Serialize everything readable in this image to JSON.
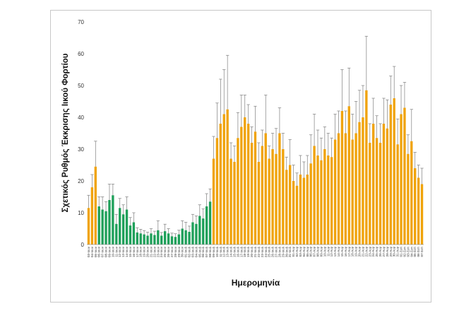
{
  "chart_data": {
    "type": "bar",
    "title": "",
    "xlabel": "Ημερομηνία",
    "ylabel": "Σχετικός Ρυθμός Έκκρισης Ιικού Φορτίου",
    "ylim": [
      0,
      70
    ],
    "yticks": [
      0,
      10,
      20,
      30,
      40,
      50,
      60,
      70
    ],
    "grid": false,
    "colors": {
      "orange": "#F0A30A",
      "green": "#1FA05A",
      "error": "#7f7f7f"
    },
    "categories": [
      "03-Ιουν",
      "04-Ιουν",
      "05-Ιουν",
      "06-Ιουν",
      "07-Ιουν",
      "08-Ιουν",
      "09-Ιουν",
      "10-Ιουν",
      "11-Ιουν",
      "12-Ιουν",
      "13-Ιουν",
      "14-Ιουν",
      "15-Ιουν",
      "16-Ιουν",
      "17-Ιουν",
      "18-Ιουν",
      "19-Ιουν",
      "20-Ιουν",
      "21-Ιουν",
      "22-Ιουν",
      "23-Ιουν",
      "24-Ιουν",
      "25-Ιουν",
      "26-Ιουν",
      "27-Ιουν",
      "28-Ιουν",
      "29-Ιουν",
      "30-Ιουν",
      "01-Ιουλ",
      "02-Ιουλ",
      "03-Ιουλ",
      "04-Ιουλ",
      "05-Ιουλ",
      "06-Ιουλ",
      "07-Ιουλ",
      "08-Ιουλ",
      "09-Ιουλ",
      "10-Ιουλ",
      "11-Ιουλ",
      "12-Ιουλ",
      "13-Ιουλ",
      "14-Ιουλ",
      "15-Ιουλ",
      "16-Ιουλ",
      "17-Ιουλ",
      "18-Ιουλ",
      "19-Ιουλ",
      "20-Ιουλ",
      "21-Ιουλ",
      "22-Ιουλ",
      "23-Ιουλ",
      "24-Ιουλ",
      "25-Ιουλ",
      "26-Ιουλ",
      "27-Ιουλ",
      "28-Ιουλ",
      "29-Ιουλ",
      "30-Ιουλ",
      "31-Ιουλ",
      "01-Αυγ",
      "02-Αυγ",
      "03-Αυγ",
      "04-Αυγ",
      "05-Αυγ",
      "06-Αυγ",
      "07-Αυγ",
      "08-Αυγ",
      "09-Αυγ",
      "10-Αυγ",
      "11-Αυγ",
      "12-Αυγ",
      "13-Αυγ",
      "14-Αυγ",
      "15-Αυγ",
      "16-Αυγ",
      "17-Αυγ",
      "18-Αυγ",
      "19-Αυγ",
      "20-Αυγ",
      "21-Αυγ",
      "22-Αυγ",
      "23-Αυγ",
      "24-Αυγ",
      "25-Αυγ",
      "26-Αυγ",
      "27-Αυγ",
      "28-Αυγ",
      "29-Αυγ",
      "30-Αυγ",
      "31-Αυγ",
      "01-Σεπ",
      "02-Σεπ",
      "03-Σεπ",
      "04-Σεπ",
      "05-Σεπ",
      "06-Σεπ",
      "07-Σεπ"
    ],
    "values": [
      11.5,
      18,
      24.5,
      12,
      11,
      10.5,
      14,
      15.5,
      6.5,
      11.5,
      9.5,
      11,
      6,
      7,
      3.8,
      3.5,
      3.2,
      2.8,
      3.5,
      3,
      4.5,
      2.8,
      4.2,
      3.5,
      2.6,
      2.4,
      3.2,
      5,
      4.5,
      4,
      7,
      6.5,
      9,
      8.2,
      12,
      13.5,
      27,
      33.5,
      38,
      41,
      42.5,
      27,
      26,
      33.5,
      37,
      40,
      38,
      32,
      35.5,
      26,
      31,
      35,
      27,
      30,
      28.5,
      35,
      30,
      23.5,
      25,
      20,
      18.5,
      22,
      21,
      22,
      25.5,
      31,
      28,
      26.5,
      30,
      28,
      27.5,
      33,
      35,
      42,
      35,
      43.5,
      33,
      35,
      38.5,
      40,
      48.5,
      32,
      38,
      33.5,
      32,
      38,
      36.5,
      44,
      46,
      31.5,
      41,
      43,
      28.5,
      32.5,
      24,
      21,
      19
    ],
    "errors": [
      4,
      4,
      8,
      3,
      4,
      3,
      5,
      3.5,
      3,
      3,
      3,
      4,
      2.5,
      3,
      1.5,
      1.3,
      1.2,
      1.1,
      1.5,
      1.2,
      3,
      1,
      2.2,
      1.5,
      1,
      1,
      1.3,
      2.5,
      2.5,
      1.8,
      2.5,
      2.5,
      3.5,
      3,
      4,
      4,
      7,
      11,
      14,
      14,
      17,
      5,
      5,
      8,
      10,
      7,
      6,
      5,
      8,
      6,
      5,
      12,
      4,
      5,
      8,
      8,
      5,
      4,
      8,
      5,
      4,
      6,
      5,
      6,
      9,
      10,
      8,
      7,
      7,
      7,
      6,
      8,
      7,
      13,
      7,
      12,
      8,
      10,
      10,
      10,
      17,
      6,
      8,
      7,
      6,
      8,
      9,
      9,
      10,
      8,
      9,
      8,
      6,
      10,
      5,
      4,
      5
    ],
    "color_index": [
      "o",
      "o",
      "o",
      "g",
      "g",
      "g",
      "g",
      "g",
      "g",
      "g",
      "g",
      "g",
      "g",
      "g",
      "g",
      "g",
      "g",
      "g",
      "g",
      "g",
      "g",
      "g",
      "g",
      "g",
      "g",
      "g",
      "g",
      "g",
      "g",
      "g",
      "g",
      "g",
      "g",
      "g",
      "g",
      "g",
      "o",
      "o",
      "o",
      "o",
      "o",
      "o",
      "o",
      "o",
      "o",
      "o",
      "o",
      "o",
      "o",
      "o",
      "o",
      "o",
      "o",
      "o",
      "o",
      "o",
      "o",
      "o",
      "o",
      "o",
      "o",
      "o",
      "o",
      "o",
      "o",
      "o",
      "o",
      "o",
      "o",
      "o",
      "o",
      "o",
      "o",
      "o",
      "o",
      "o",
      "o",
      "o",
      "o",
      "o",
      "o",
      "o",
      "o",
      "o",
      "o",
      "o",
      "o",
      "o",
      "o",
      "o",
      "o",
      "o",
      "o",
      "o",
      "o",
      "o",
      "o"
    ]
  }
}
